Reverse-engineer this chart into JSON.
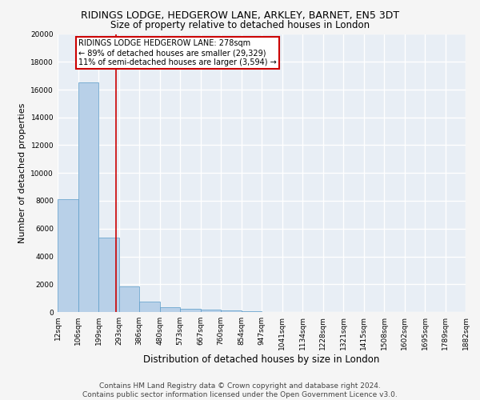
{
  "title": "RIDINGS LODGE, HEDGEROW LANE, ARKLEY, BARNET, EN5 3DT",
  "subtitle": "Size of property relative to detached houses in London",
  "xlabel": "Distribution of detached houses by size in London",
  "ylabel": "Number of detached properties",
  "bin_edges": [
    12,
    106,
    199,
    293,
    386,
    480,
    573,
    667,
    760,
    854,
    947,
    1041,
    1134,
    1228,
    1321,
    1415,
    1508,
    1602,
    1695,
    1789,
    1882
  ],
  "bin_labels": [
    "12sqm",
    "106sqm",
    "199sqm",
    "293sqm",
    "386sqm",
    "480sqm",
    "573sqm",
    "667sqm",
    "760sqm",
    "854sqm",
    "947sqm",
    "1041sqm",
    "1134sqm",
    "1228sqm",
    "1321sqm",
    "1415sqm",
    "1508sqm",
    "1602sqm",
    "1695sqm",
    "1789sqm",
    "1882sqm"
  ],
  "bar_heights": [
    8100,
    16500,
    5350,
    1850,
    750,
    350,
    220,
    150,
    130,
    50,
    0,
    0,
    0,
    0,
    0,
    0,
    0,
    0,
    0,
    0
  ],
  "bar_color": "#b8d0e8",
  "bar_edge_color": "#5a9bc8",
  "vline_x": 278,
  "vline_color": "#cc0000",
  "annotation_text": "RIDINGS LODGE HEDGEROW LANE: 278sqm\n← 89% of detached houses are smaller (29,329)\n11% of semi-detached houses are larger (3,594) →",
  "annotation_box_color": "#ffffff",
  "annotation_box_edge": "#cc0000",
  "ylim": [
    0,
    20000
  ],
  "yticks": [
    0,
    2000,
    4000,
    6000,
    8000,
    10000,
    12000,
    14000,
    16000,
    18000,
    20000
  ],
  "footnote": "Contains HM Land Registry data © Crown copyright and database right 2024.\nContains public sector information licensed under the Open Government Licence v3.0.",
  "fig_background_color": "#f5f5f5",
  "plot_background_color": "#e8eef5",
  "grid_color": "#ffffff",
  "title_fontsize": 9,
  "subtitle_fontsize": 8.5,
  "ylabel_fontsize": 8,
  "xlabel_fontsize": 8.5,
  "tick_fontsize": 6.5,
  "footnote_fontsize": 6.5,
  "annotation_fontsize": 7
}
